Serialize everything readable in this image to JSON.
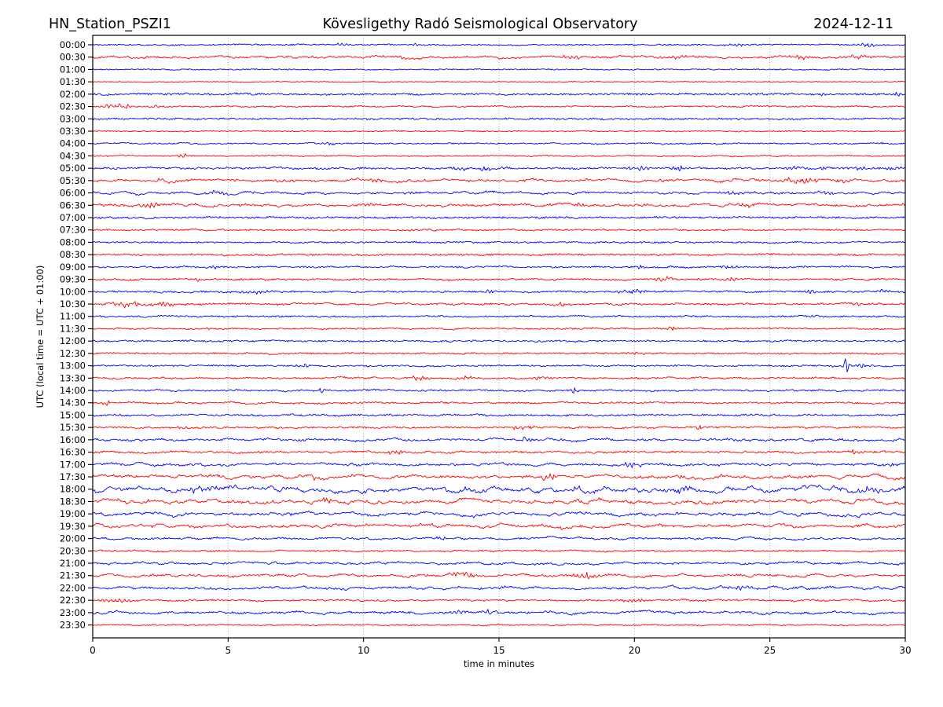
{
  "figure": {
    "station": "HN_Station_PSZI1",
    "title": "Kövesligethy Radó Seismological Observatory",
    "date": "2024-12-11"
  },
  "chart_data": {
    "type": "line",
    "subtype": "helicorder-daily-seismogram",
    "title": "Kövesligethy Radó Seismological Observatory",
    "station": "HN_Station_PSZI1",
    "date": "2024-12-11",
    "xlabel": "time in minutes",
    "ylabel": "UTC (local time = UTC + 01:00)",
    "xlim": [
      0,
      30
    ],
    "x_ticks": [
      0,
      5,
      10,
      15,
      20,
      25,
      30
    ],
    "grid": "vertical dotted gridlines every 5 minutes",
    "legend": "none",
    "row_interval_minutes": 30,
    "rows": 48,
    "colors": {
      "even_trace": "#0000ff",
      "odd_trace": "#ff0000",
      "grid": "#999999",
      "axis": "#000000"
    },
    "event_format": "[start_minute, amplitude_px, duration_minutes]",
    "traces": [
      {
        "time": "00:00",
        "color": "blue",
        "noise": 0.8,
        "wavy": 0.3,
        "events": [
          [
            9.1,
            1.8,
            0.5
          ],
          [
            11.9,
            1.6,
            0.4
          ],
          [
            24.0,
            1.2,
            0.8
          ],
          [
            28.6,
            2.0,
            0.8
          ]
        ]
      },
      {
        "time": "00:30",
        "color": "red",
        "noise": 0.9,
        "wavy": 0.8,
        "events": [
          [
            11.4,
            1.6,
            0.8
          ],
          [
            17.6,
            1.5,
            0.6
          ],
          [
            21.6,
            1.8,
            0.8
          ],
          [
            26.2,
            2.0,
            0.9
          ],
          [
            28.2,
            2.0,
            0.7
          ]
        ]
      },
      {
        "time": "01:00",
        "color": "blue",
        "noise": 0.7,
        "wavy": 0.2,
        "events": []
      },
      {
        "time": "01:30",
        "color": "red",
        "noise": 0.5,
        "wavy": 0.2,
        "events": []
      },
      {
        "time": "02:00",
        "color": "blue",
        "noise": 1.1,
        "wavy": 0.3,
        "events": [
          [
            24.6,
            1.5,
            0.5
          ],
          [
            27.0,
            1.5,
            0.4
          ],
          [
            29.7,
            2.6,
            0.3
          ]
        ]
      },
      {
        "time": "02:30",
        "color": "red",
        "noise": 0.8,
        "wavy": 0.3,
        "events": [
          [
            0.9,
            2.6,
            1.0
          ],
          [
            2.3,
            1.5,
            0.6
          ]
        ]
      },
      {
        "time": "03:00",
        "color": "blue",
        "noise": 1.0,
        "wavy": 0.2,
        "events": []
      },
      {
        "time": "03:30",
        "color": "red",
        "noise": 0.7,
        "wavy": 0.2,
        "events": []
      },
      {
        "time": "04:00",
        "color": "blue",
        "noise": 0.8,
        "wavy": 0.3,
        "events": [
          [
            8.7,
            1.8,
            0.5
          ]
        ]
      },
      {
        "time": "04:30",
        "color": "red",
        "noise": 0.7,
        "wavy": 0.3,
        "events": [
          [
            3.3,
            2.2,
            0.4
          ]
        ]
      },
      {
        "time": "05:00",
        "color": "blue",
        "noise": 1.0,
        "wavy": 0.4,
        "events": [
          [
            13.6,
            1.8,
            0.7
          ],
          [
            14.5,
            2.6,
            0.4
          ],
          [
            15.2,
            1.8,
            0.3
          ],
          [
            20.1,
            2.6,
            0.8
          ],
          [
            21.6,
            3.0,
            0.5
          ],
          [
            25.9,
            1.8,
            0.7
          ],
          [
            26.9,
            1.8,
            0.5
          ],
          [
            28.4,
            2.2,
            0.7
          ],
          [
            29.6,
            2.6,
            0.4
          ]
        ]
      },
      {
        "time": "05:30",
        "color": "red",
        "noise": 1.0,
        "wavy": 0.9,
        "events": [
          [
            2.6,
            2.2,
            0.7
          ],
          [
            7.0,
            1.8,
            0.7
          ],
          [
            10.4,
            2.2,
            0.5
          ],
          [
            26.1,
            3.6,
            0.9
          ],
          [
            27.6,
            1.8,
            0.5
          ]
        ]
      },
      {
        "time": "06:00",
        "color": "blue",
        "noise": 0.9,
        "wavy": 0.8,
        "events": [
          [
            4.6,
            2.2,
            0.7
          ],
          [
            11.6,
            2.2,
            0.6
          ],
          [
            23.6,
            1.8,
            0.5
          ],
          [
            27.0,
            1.6,
            0.8
          ]
        ]
      },
      {
        "time": "06:30",
        "color": "red",
        "noise": 1.0,
        "wavy": 1.0,
        "events": [
          [
            2.2,
            2.6,
            0.8
          ],
          [
            10.1,
            2.2,
            0.6
          ],
          [
            18.0,
            1.8,
            0.5
          ],
          [
            24.1,
            1.8,
            0.6
          ]
        ]
      },
      {
        "time": "07:00",
        "color": "blue",
        "noise": 1.1,
        "wavy": 0.3,
        "events": []
      },
      {
        "time": "07:30",
        "color": "red",
        "noise": 0.9,
        "wavy": 0.3,
        "events": [
          [
            12.5,
            2.0,
            0.3
          ]
        ]
      },
      {
        "time": "08:00",
        "color": "blue",
        "noise": 0.9,
        "wavy": 0.3,
        "events": []
      },
      {
        "time": "08:30",
        "color": "red",
        "noise": 1.1,
        "wavy": 0.3,
        "events": []
      },
      {
        "time": "09:00",
        "color": "blue",
        "noise": 0.9,
        "wavy": 0.4,
        "events": [
          [
            4.6,
            2.0,
            0.5
          ],
          [
            20.2,
            3.6,
            0.12
          ],
          [
            23.6,
            1.6,
            0.7
          ]
        ]
      },
      {
        "time": "09:30",
        "color": "red",
        "noise": 0.9,
        "wavy": 0.4,
        "events": [
          [
            3.9,
            2.2,
            0.15
          ],
          [
            21.1,
            2.6,
            0.5
          ],
          [
            22.4,
            3.4,
            0.12
          ],
          [
            23.7,
            1.8,
            0.5
          ]
        ]
      },
      {
        "time": "10:00",
        "color": "blue",
        "noise": 1.0,
        "wavy": 0.4,
        "events": [
          [
            5.9,
            1.8,
            0.8
          ],
          [
            14.7,
            2.2,
            0.4
          ],
          [
            20.0,
            2.8,
            0.8
          ],
          [
            26.6,
            1.8,
            0.4
          ],
          [
            29.2,
            1.8,
            0.4
          ]
        ]
      },
      {
        "time": "10:30",
        "color": "red",
        "noise": 1.0,
        "wavy": 0.5,
        "events": [
          [
            1.3,
            3.4,
            0.9
          ],
          [
            2.6,
            2.2,
            0.7
          ],
          [
            17.3,
            2.2,
            0.35
          ],
          [
            28.2,
            3.8,
            0.15
          ]
        ]
      },
      {
        "time": "11:00",
        "color": "blue",
        "noise": 0.9,
        "wavy": 0.3,
        "events": [
          [
            26.6,
            2.0,
            0.4
          ]
        ]
      },
      {
        "time": "11:30",
        "color": "red",
        "noise": 0.8,
        "wavy": 0.3,
        "events": [
          [
            4.2,
            2.2,
            0.15
          ],
          [
            21.4,
            2.4,
            0.35
          ]
        ]
      },
      {
        "time": "12:00",
        "color": "blue",
        "noise": 0.9,
        "wavy": 0.3,
        "events": []
      },
      {
        "time": "12:30",
        "color": "red",
        "noise": 0.9,
        "wavy": 0.3,
        "events": [
          [
            20.1,
            1.6,
            0.6
          ]
        ]
      },
      {
        "time": "13:00",
        "color": "blue",
        "noise": 0.9,
        "wavy": 0.3,
        "events": [
          [
            7.8,
            1.8,
            0.6
          ],
          [
            27.8,
            7.5,
            0.18
          ],
          [
            28.4,
            2.2,
            0.6
          ]
        ]
      },
      {
        "time": "13:30",
        "color": "red",
        "noise": 0.9,
        "wavy": 0.4,
        "events": [
          [
            12.0,
            3.2,
            0.6
          ],
          [
            13.8,
            1.8,
            0.7
          ],
          [
            16.5,
            2.6,
            0.45
          ]
        ]
      },
      {
        "time": "14:00",
        "color": "blue",
        "noise": 0.9,
        "wavy": 0.4,
        "events": [
          [
            8.4,
            2.2,
            0.35
          ],
          [
            17.8,
            3.6,
            0.22
          ]
        ]
      },
      {
        "time": "14:30",
        "color": "red",
        "noise": 0.9,
        "wavy": 0.4,
        "events": [
          [
            0.5,
            2.6,
            0.45
          ]
        ]
      },
      {
        "time": "15:00",
        "color": "blue",
        "noise": 1.0,
        "wavy": 0.4,
        "events": []
      },
      {
        "time": "15:30",
        "color": "red",
        "noise": 0.9,
        "wavy": 0.4,
        "events": [
          [
            3.2,
            1.8,
            0.45
          ],
          [
            15.8,
            2.2,
            0.7
          ],
          [
            22.3,
            2.6,
            0.45
          ]
        ]
      },
      {
        "time": "16:00",
        "color": "blue",
        "noise": 1.0,
        "wavy": 0.8,
        "events": [
          [
            15.9,
            2.6,
            0.6
          ]
        ]
      },
      {
        "time": "16:30",
        "color": "red",
        "noise": 1.0,
        "wavy": 0.5,
        "events": [
          [
            11.2,
            2.4,
            0.5
          ],
          [
            28.1,
            1.8,
            0.7
          ]
        ]
      },
      {
        "time": "17:00",
        "color": "blue",
        "noise": 1.0,
        "wavy": 0.9,
        "events": [
          [
            19.9,
            2.6,
            0.6
          ],
          [
            29.7,
            2.2,
            0.35
          ]
        ]
      },
      {
        "time": "17:30",
        "color": "red",
        "noise": 1.0,
        "wavy": 1.3,
        "events": [
          [
            8.2,
            2.6,
            0.15
          ],
          [
            16.8,
            3.0,
            0.6
          ],
          [
            21.6,
            2.2,
            0.35
          ]
        ]
      },
      {
        "time": "18:00",
        "color": "blue",
        "noise": 1.1,
        "wavy": 2.0,
        "events": [
          [
            3.9,
            2.6,
            1.2
          ],
          [
            13.9,
            2.2,
            0.9
          ],
          [
            17.9,
            3.0,
            0.45
          ],
          [
            21.6,
            2.6,
            0.9
          ],
          [
            28.6,
            2.6,
            0.9
          ]
        ]
      },
      {
        "time": "18:30",
        "color": "red",
        "noise": 1.0,
        "wavy": 1.6,
        "events": [
          [
            8.7,
            2.6,
            0.45
          ],
          [
            24.0,
            2.6,
            0.15
          ]
        ]
      },
      {
        "time": "19:00",
        "color": "blue",
        "noise": 1.0,
        "wavy": 1.3,
        "events": [
          [
            6.9,
            2.2,
            0.7
          ]
        ]
      },
      {
        "time": "19:30",
        "color": "red",
        "noise": 1.0,
        "wavy": 1.2,
        "events": [
          [
            17.3,
            2.6,
            0.15
          ]
        ]
      },
      {
        "time": "20:00",
        "color": "blue",
        "noise": 0.9,
        "wavy": 0.6,
        "events": [
          [
            12.8,
            2.8,
            0.35
          ]
        ]
      },
      {
        "time": "20:30",
        "color": "red",
        "noise": 0.8,
        "wavy": 0.4,
        "events": []
      },
      {
        "time": "21:00",
        "color": "blue",
        "noise": 0.9,
        "wavy": 0.9,
        "events": []
      },
      {
        "time": "21:30",
        "color": "red",
        "noise": 0.9,
        "wavy": 1.0,
        "events": [
          [
            13.6,
            2.2,
            0.9
          ],
          [
            18.2,
            3.4,
            0.7
          ]
        ]
      },
      {
        "time": "22:00",
        "color": "blue",
        "noise": 0.9,
        "wavy": 1.0,
        "events": [
          [
            24.1,
            1.8,
            1.2
          ]
        ]
      },
      {
        "time": "22:30",
        "color": "red",
        "noise": 0.9,
        "wavy": 0.5,
        "events": [
          [
            0.9,
            2.2,
            1.0
          ],
          [
            19.9,
            1.8,
            0.9
          ]
        ]
      },
      {
        "time": "23:00",
        "color": "blue",
        "noise": 1.0,
        "wavy": 0.8,
        "events": [
          [
            13.5,
            1.8,
            0.45
          ],
          [
            14.6,
            2.2,
            0.5
          ]
        ]
      },
      {
        "time": "23:30",
        "color": "red",
        "noise": 0.7,
        "wavy": 0.3,
        "events": []
      }
    ]
  }
}
